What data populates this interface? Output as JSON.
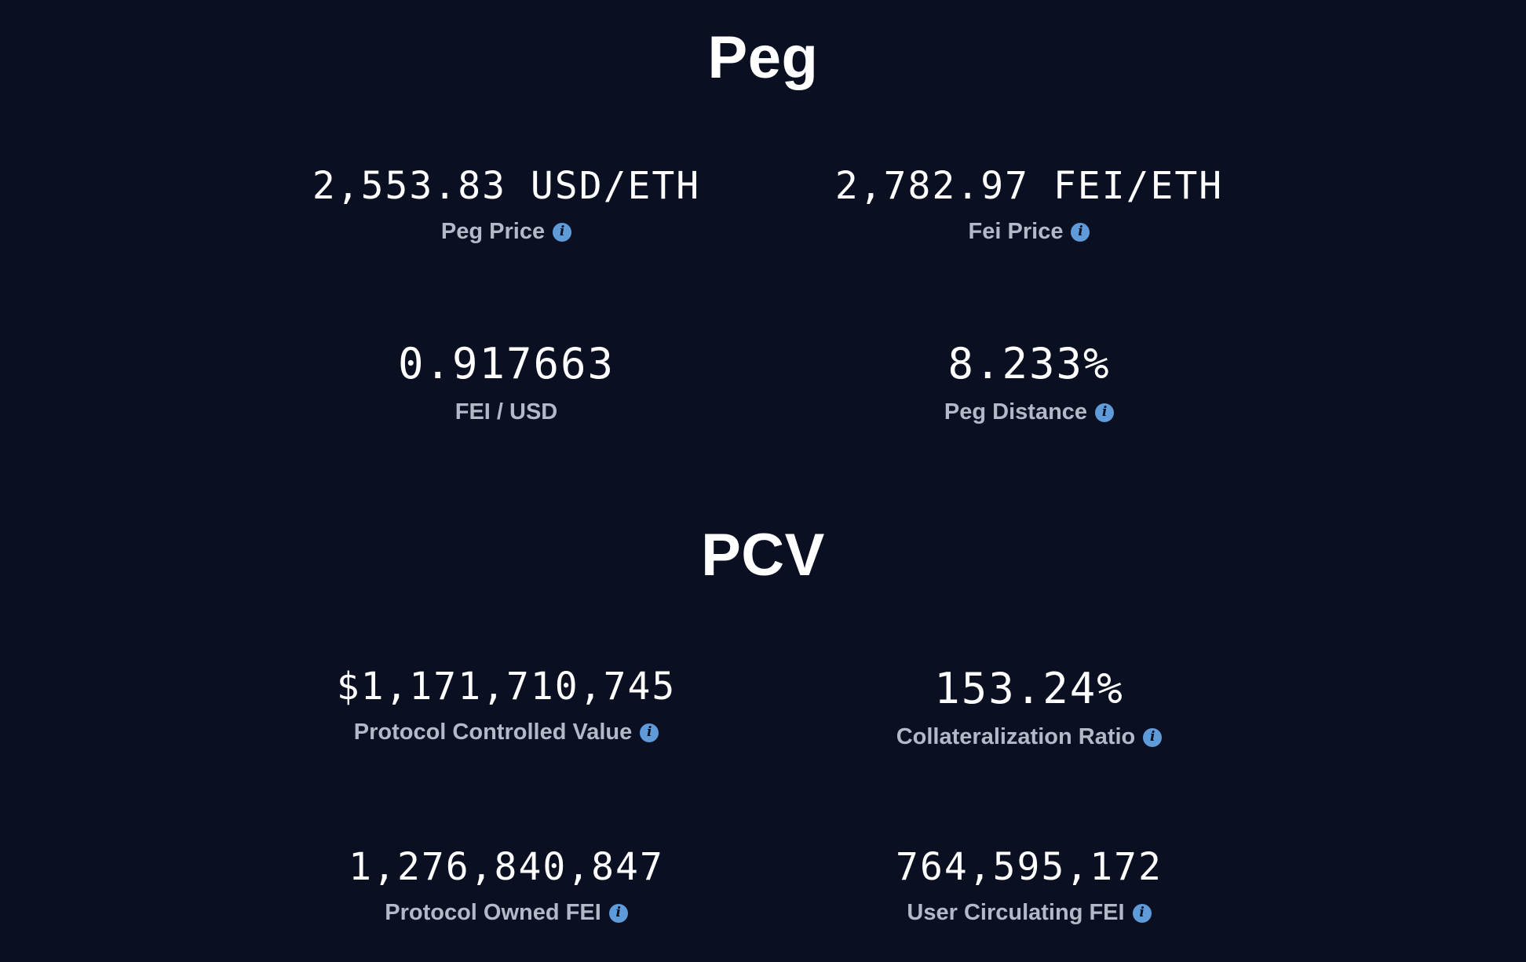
{
  "peg": {
    "title": "Peg",
    "stats": [
      {
        "value": "2,553.83 USD/ETH",
        "label": "Peg Price",
        "info": true
      },
      {
        "value": "2,782.97 FEI/ETH",
        "label": "Fei Price",
        "info": true
      },
      {
        "value": "0.917663",
        "label": "FEI / USD",
        "info": false
      },
      {
        "value": "8.233%",
        "label": "Peg Distance",
        "info": true
      }
    ]
  },
  "pcv": {
    "title": "PCV",
    "stats": [
      {
        "value": "$1,171,710,745",
        "label": "Protocol Controlled Value",
        "info": true
      },
      {
        "value": "153.24%",
        "label": "Collateralization Ratio",
        "info": true
      },
      {
        "value": "1,276,840,847",
        "label": "Protocol Owned FEI",
        "info": true
      },
      {
        "value": "764,595,172",
        "label": "User Circulating FEI",
        "info": true
      }
    ]
  },
  "icons": {
    "info_glyph": "i",
    "info_color": "#5f9bd8"
  },
  "colors": {
    "background": "#0a0f22",
    "value_text": "#ffffff",
    "label_text": "#b4b9c8"
  }
}
